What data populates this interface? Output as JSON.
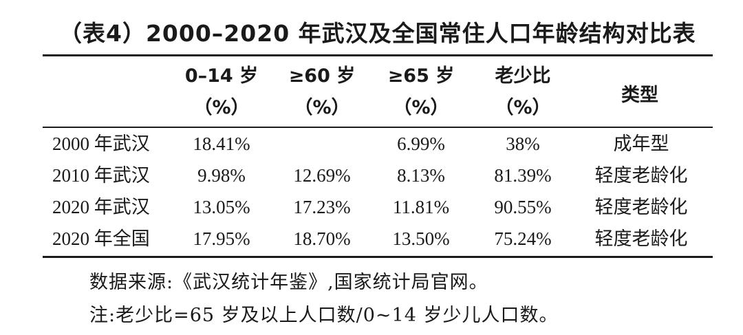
{
  "title": "（表4）2000–2020 年武汉及全国常住人口年龄结构对比表",
  "headers": {
    "age0_14": {
      "line1": "0–14 岁",
      "line2": "（%）"
    },
    "age60": {
      "line1": "≥60 岁",
      "line2": "（%）"
    },
    "age65": {
      "line1": "≥65 岁",
      "line2": "（%）"
    },
    "ratio": {
      "line1": "老少比",
      "line2": "（%）"
    },
    "type": "类型"
  },
  "rows": [
    {
      "label": "2000 年武汉",
      "age0_14": "18.41%",
      "age60": "",
      "age65": "6.99%",
      "ratio": "38%",
      "type": "成年型"
    },
    {
      "label": "2010 年武汉",
      "age0_14": "9.98%",
      "age60": "12.69%",
      "age65": "8.13%",
      "ratio": "81.39%",
      "type": "轻度老龄化"
    },
    {
      "label": "2020 年武汉",
      "age0_14": "13.05%",
      "age60": "17.23%",
      "age65": "11.81%",
      "ratio": "90.55%",
      "type": "轻度老龄化"
    },
    {
      "label": "2020 年全国",
      "age0_14": "17.95%",
      "age60": "18.70%",
      "age65": "13.50%",
      "ratio": "75.24%",
      "type": "轻度老龄化"
    }
  ],
  "notes": {
    "source": "数据来源:《武汉统计年鉴》,国家统计局官网。",
    "note": "注:老少比=65 岁及以上人口数/0~14 岁少儿人口数。"
  }
}
